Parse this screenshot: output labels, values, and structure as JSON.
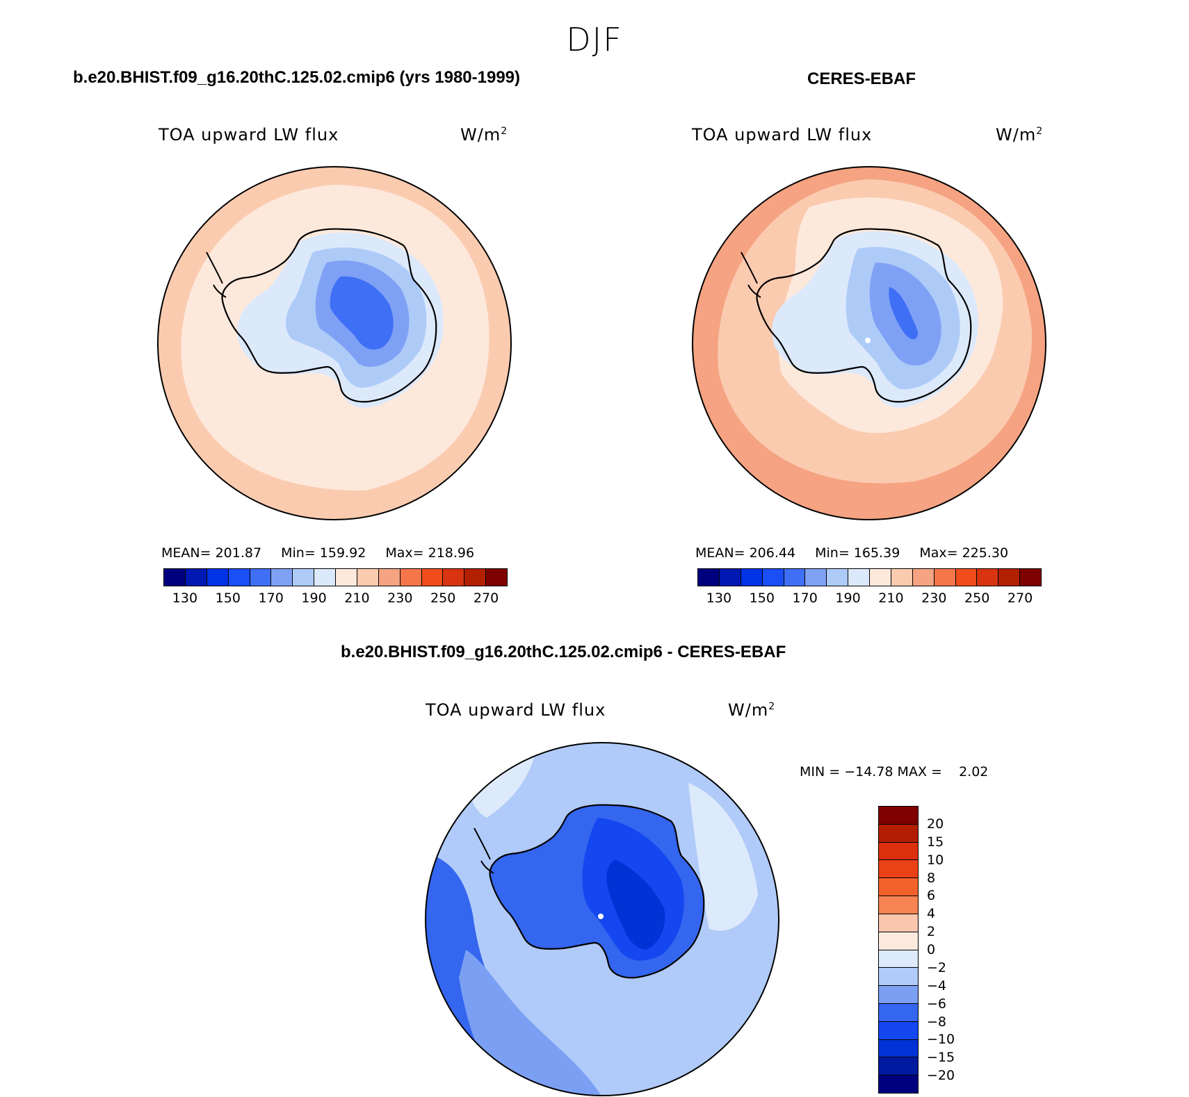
{
  "season": "DJF",
  "colors": {
    "abs_levels": [
      "#00007f",
      "#0019b2",
      "#0033e5",
      "#1a4ff5",
      "#3f6ff5",
      "#7fa1f5",
      "#aecbf8",
      "#dce9fb",
      "#fde9dc",
      "#fbcbb0",
      "#f5a382",
      "#f5764b",
      "#f04d1c",
      "#d93412",
      "#b32000",
      "#7f0000"
    ],
    "diff_levels": [
      "#00007f",
      "#001aa0",
      "#0033d5",
      "#1447f0",
      "#3466ef",
      "#7ba0f3",
      "#b0cbf9",
      "#ddeafb",
      "#fdeadf",
      "#fac6ad",
      "#f78452",
      "#f4622b",
      "#eb4116",
      "#dc300d",
      "#b31e02",
      "#7f0000"
    ],
    "coastline": "#000000"
  },
  "panels": {
    "model": {
      "title": "b.e20.BHIST.f09_g16.20thC.125.02.cmip6 (yrs 1980-1999)",
      "var_name": "TOA upward LW flux",
      "units": "W/m",
      "units_sup": "2",
      "stats": {
        "mean_label": "MEAN=",
        "mean": "201.87",
        "min_label": "Min=",
        "min": "159.92",
        "max_label": "Max=",
        "max": "218.96"
      }
    },
    "obs": {
      "title": "CERES-EBAF",
      "var_name": "TOA upward LW flux",
      "units": "W/m",
      "units_sup": "2",
      "stats": {
        "mean_label": "MEAN=",
        "mean": "206.44",
        "min_label": "Min=",
        "min": "165.39",
        "max_label": "Max=",
        "max": "225.30"
      }
    },
    "diff": {
      "title": "b.e20.BHIST.f09_g16.20thC.125.02.cmip6 - CERES-EBAF",
      "var_name": "TOA upward LW flux",
      "units": "W/m",
      "units_sup": "2",
      "minmax": "MIN = −14.78 MAX =    2.02"
    }
  },
  "chart_data": [
    {
      "type": "heatmap",
      "projection": "south polar stereographic",
      "title": "b.e20.BHIST.f09_g16.20thC.125.02.cmip6 (yrs 1980-1999)",
      "variable": "TOA upward LW flux",
      "units": "W/m2",
      "mean": 201.87,
      "min": 159.92,
      "max": 218.96,
      "colorbar_ticks": [
        130,
        150,
        170,
        190,
        210,
        230,
        250,
        270
      ],
      "colorbar_range": [
        120,
        280
      ]
    },
    {
      "type": "heatmap",
      "projection": "south polar stereographic",
      "title": "CERES-EBAF",
      "variable": "TOA upward LW flux",
      "units": "W/m2",
      "mean": 206.44,
      "min": 165.39,
      "max": 225.3,
      "colorbar_ticks": [
        130,
        150,
        170,
        190,
        210,
        230,
        250,
        270
      ],
      "colorbar_range": [
        120,
        280
      ]
    },
    {
      "type": "heatmap",
      "projection": "south polar stereographic",
      "title": "b.e20.BHIST.f09_g16.20thC.125.02.cmip6 - CERES-EBAF",
      "variable": "TOA upward LW flux",
      "units": "W/m2",
      "min": -14.78,
      "max": 2.02,
      "colorbar_ticks": [
        "20",
        "15",
        "10",
        "8",
        "6",
        "4",
        "2",
        "0",
        "−2",
        "−4",
        "−6",
        "−8",
        "−10",
        "−15",
        "−20"
      ]
    }
  ]
}
